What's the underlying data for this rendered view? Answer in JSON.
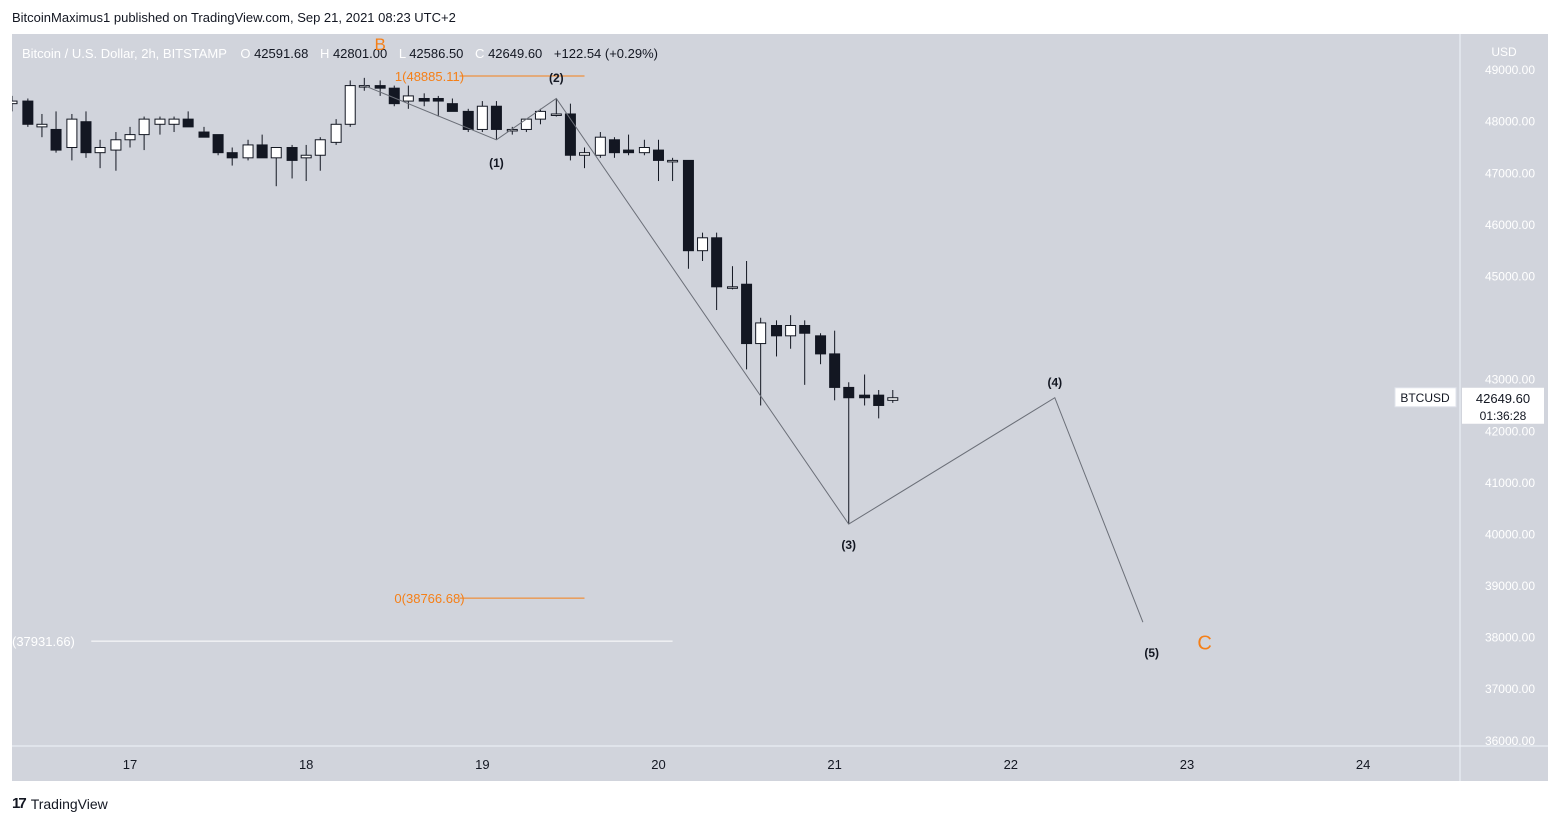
{
  "header": {
    "published": "BitcoinMaximus1 published on TradingView.com, Sep 21, 2021 08:23 UTC+2"
  },
  "footer": {
    "brand": "TradingView",
    "logo_icon": "tradingview-logo-icon"
  },
  "colors": {
    "plot_bg": "#d1d4dc",
    "orange": "#f57f17",
    "candle_dark": "#131722",
    "candle_light": "#ffffff",
    "wave_line": "#6b6f78",
    "fib_line": "#f57f17"
  },
  "chart_data": {
    "type": "candlestick",
    "title": "Bitcoin / U.S. Dollar, 2h, BITSTAMP",
    "ohlc_legend": {
      "o_label": "O",
      "o": "42591.68",
      "h_label": "H",
      "h": "42801.00",
      "l_label": "L",
      "l": "42586.50",
      "c_label": "C",
      "c": "42649.60",
      "change": "+122.54 (+0.29%)"
    },
    "currency": "USD",
    "y_ticks": [
      "49000.00",
      "48000.00",
      "47000.00",
      "46000.00",
      "45000.00",
      "43000.00",
      "42000.00",
      "41000.00",
      "40000.00",
      "39000.00",
      "38000.00",
      "37000.00",
      "36000.00"
    ],
    "y_range": [
      35900,
      49700
    ],
    "x_ticks": [
      "17",
      "18",
      "19",
      "20",
      "21",
      "22",
      "23",
      "24"
    ],
    "x_range_days": [
      16.33,
      24.55
    ],
    "price_label": {
      "symbol": "BTCUSD",
      "price": "42649.60",
      "countdown": "01:36:28",
      "value": 42649.6
    },
    "candles": [
      {
        "t": 16.33,
        "o": 48350,
        "h": 48500,
        "l": 48200,
        "c": 48400
      },
      {
        "t": 16.42,
        "o": 48400,
        "h": 48450,
        "l": 47900,
        "c": 47950
      },
      {
        "t": 16.5,
        "o": 47900,
        "h": 48150,
        "l": 47700,
        "c": 47950
      },
      {
        "t": 16.58,
        "o": 47850,
        "h": 48200,
        "l": 47400,
        "c": 47450
      },
      {
        "t": 16.67,
        "o": 47500,
        "h": 48150,
        "l": 47250,
        "c": 48050
      },
      {
        "t": 16.75,
        "o": 48000,
        "h": 48200,
        "l": 47300,
        "c": 47400
      },
      {
        "t": 16.83,
        "o": 47400,
        "h": 47650,
        "l": 47100,
        "c": 47500
      },
      {
        "t": 16.92,
        "o": 47450,
        "h": 47800,
        "l": 47050,
        "c": 47650
      },
      {
        "t": 17.0,
        "o": 47650,
        "h": 47900,
        "l": 47500,
        "c": 47750
      },
      {
        "t": 17.08,
        "o": 47750,
        "h": 48100,
        "l": 47450,
        "c": 48050
      },
      {
        "t": 17.17,
        "o": 47950,
        "h": 48100,
        "l": 47750,
        "c": 48050
      },
      {
        "t": 17.25,
        "o": 47950,
        "h": 48100,
        "l": 47800,
        "c": 48050
      },
      {
        "t": 17.33,
        "o": 48050,
        "h": 48200,
        "l": 47950,
        "c": 47900
      },
      {
        "t": 17.42,
        "o": 47800,
        "h": 47900,
        "l": 47700,
        "c": 47700
      },
      {
        "t": 17.5,
        "o": 47750,
        "h": 47750,
        "l": 47350,
        "c": 47400
      },
      {
        "t": 17.58,
        "o": 47400,
        "h": 47500,
        "l": 47150,
        "c": 47300
      },
      {
        "t": 17.67,
        "o": 47300,
        "h": 47650,
        "l": 47250,
        "c": 47550
      },
      {
        "t": 17.75,
        "o": 47550,
        "h": 47750,
        "l": 47300,
        "c": 47300
      },
      {
        "t": 17.83,
        "o": 47300,
        "h": 47500,
        "l": 46750,
        "c": 47500
      },
      {
        "t": 17.92,
        "o": 47500,
        "h": 47550,
        "l": 46900,
        "c": 47250
      },
      {
        "t": 18.0,
        "o": 47300,
        "h": 47550,
        "l": 46850,
        "c": 47350
      },
      {
        "t": 18.08,
        "o": 47350,
        "h": 47700,
        "l": 47050,
        "c": 47650
      },
      {
        "t": 18.17,
        "o": 47600,
        "h": 48050,
        "l": 47550,
        "c": 47950
      },
      {
        "t": 18.25,
        "o": 47950,
        "h": 48800,
        "l": 47900,
        "c": 48700
      },
      {
        "t": 18.33,
        "o": 48700,
        "h": 48850,
        "l": 48600,
        "c": 48700
      },
      {
        "t": 18.42,
        "o": 48700,
        "h": 48800,
        "l": 48500,
        "c": 48650
      },
      {
        "t": 18.5,
        "o": 48650,
        "h": 48700,
        "l": 48300,
        "c": 48350
      },
      {
        "t": 18.58,
        "o": 48400,
        "h": 48700,
        "l": 48250,
        "c": 48500
      },
      {
        "t": 18.67,
        "o": 48450,
        "h": 48550,
        "l": 48300,
        "c": 48400
      },
      {
        "t": 18.75,
        "o": 48450,
        "h": 48500,
        "l": 48100,
        "c": 48400
      },
      {
        "t": 18.83,
        "o": 48350,
        "h": 48450,
        "l": 48200,
        "c": 48200
      },
      {
        "t": 18.92,
        "o": 48200,
        "h": 48250,
        "l": 47800,
        "c": 47850
      },
      {
        "t": 19.0,
        "o": 47850,
        "h": 48400,
        "l": 47800,
        "c": 48300
      },
      {
        "t": 19.08,
        "o": 48300,
        "h": 48400,
        "l": 47650,
        "c": 47850
      },
      {
        "t": 19.17,
        "o": 47850,
        "h": 47900,
        "l": 47750,
        "c": 47850
      },
      {
        "t": 19.25,
        "o": 47850,
        "h": 48050,
        "l": 47800,
        "c": 48050
      },
      {
        "t": 19.33,
        "o": 48050,
        "h": 48250,
        "l": 47950,
        "c": 48200
      },
      {
        "t": 19.42,
        "o": 48150,
        "h": 48450,
        "l": 48100,
        "c": 48150
      },
      {
        "t": 19.5,
        "o": 48150,
        "h": 48350,
        "l": 47250,
        "c": 47350
      },
      {
        "t": 19.58,
        "o": 47350,
        "h": 47500,
        "l": 47100,
        "c": 47400
      },
      {
        "t": 19.67,
        "o": 47350,
        "h": 47800,
        "l": 47300,
        "c": 47700
      },
      {
        "t": 19.75,
        "o": 47650,
        "h": 47700,
        "l": 47300,
        "c": 47400
      },
      {
        "t": 19.83,
        "o": 47450,
        "h": 47750,
        "l": 47350,
        "c": 47400
      },
      {
        "t": 19.92,
        "o": 47400,
        "h": 47650,
        "l": 47350,
        "c": 47500
      },
      {
        "t": 20.0,
        "o": 47450,
        "h": 47650,
        "l": 46850,
        "c": 47250
      },
      {
        "t": 20.08,
        "o": 47250,
        "h": 47300,
        "l": 46850,
        "c": 47250
      },
      {
        "t": 20.17,
        "o": 47250,
        "h": 47250,
        "l": 45150,
        "c": 45500
      },
      {
        "t": 20.25,
        "o": 45500,
        "h": 45850,
        "l": 45300,
        "c": 45750
      },
      {
        "t": 20.33,
        "o": 45750,
        "h": 45850,
        "l": 44350,
        "c": 44800
      },
      {
        "t": 20.42,
        "o": 44800,
        "h": 45200,
        "l": 44750,
        "c": 44800
      },
      {
        "t": 20.5,
        "o": 44850,
        "h": 45300,
        "l": 43200,
        "c": 43700
      },
      {
        "t": 20.58,
        "o": 43700,
        "h": 44200,
        "l": 42500,
        "c": 44100
      },
      {
        "t": 20.67,
        "o": 44050,
        "h": 44150,
        "l": 43450,
        "c": 43850
      },
      {
        "t": 20.75,
        "o": 43850,
        "h": 44250,
        "l": 43600,
        "c": 44050
      },
      {
        "t": 20.83,
        "o": 44050,
        "h": 44150,
        "l": 42900,
        "c": 43900
      },
      {
        "t": 20.92,
        "o": 43850,
        "h": 43900,
        "l": 43300,
        "c": 43500
      },
      {
        "t": 21.0,
        "o": 43500,
        "h": 43950,
        "l": 42600,
        "c": 42850
      },
      {
        "t": 21.08,
        "o": 42850,
        "h": 42950,
        "l": 40200,
        "c": 42650
      },
      {
        "t": 21.17,
        "o": 42700,
        "h": 43100,
        "l": 42500,
        "c": 42650
      },
      {
        "t": 21.25,
        "o": 42700,
        "h": 42800,
        "l": 42250,
        "c": 42500
      },
      {
        "t": 21.33,
        "o": 42600,
        "h": 42800,
        "l": 42550,
        "c": 42650
      }
    ],
    "wave_path": [
      {
        "t": 18.33,
        "p": 48700
      },
      {
        "t": 19.08,
        "p": 47650
      },
      {
        "t": 19.42,
        "p": 48450
      },
      {
        "t": 21.08,
        "p": 40200
      },
      {
        "t": 22.25,
        "p": 42650
      },
      {
        "t": 22.75,
        "p": 38300
      }
    ],
    "wave_labels": [
      {
        "text": "B",
        "t": 18.42,
        "p": 49500,
        "color": "orange",
        "size": 17
      },
      {
        "text": "(1)",
        "t": 19.08,
        "p": 47200,
        "color": "dark",
        "size": 12
      },
      {
        "text": "(2)",
        "t": 19.42,
        "p": 48850,
        "color": "dark",
        "size": 12
      },
      {
        "text": "(3)",
        "t": 21.08,
        "p": 39800,
        "color": "dark",
        "size": 12
      },
      {
        "text": "(4)",
        "t": 22.25,
        "p": 42950,
        "color": "dark",
        "size": 12
      },
      {
        "text": "(5)",
        "t": 22.8,
        "p": 37700,
        "color": "dark",
        "size": 12
      },
      {
        "text": "C",
        "t": 23.1,
        "p": 37900,
        "color": "orange",
        "size": 20
      }
    ],
    "fib_levels": [
      {
        "label": "1(48885.11)",
        "value": 48885.11,
        "t_label": 18.7,
        "t_start": 18.87,
        "t_end": 19.58
      },
      {
        "label": "0(38766.68)",
        "value": 38766.68,
        "t_label": 18.7,
        "t_start": 18.87,
        "t_end": 19.58
      }
    ],
    "support_line": {
      "label": "(37931.66)",
      "value": 37931.66,
      "t_label": 16.33,
      "t_start": 16.78,
      "t_end": 20.08
    }
  }
}
